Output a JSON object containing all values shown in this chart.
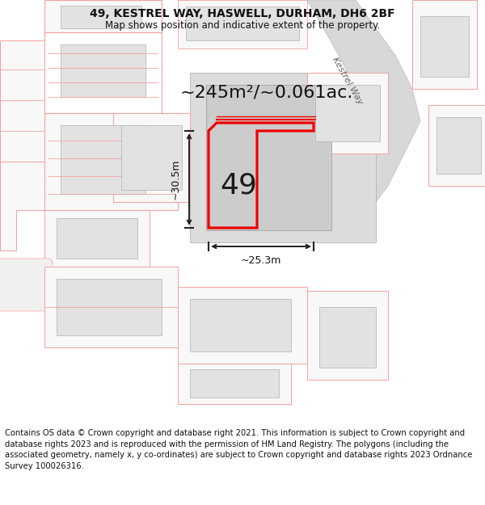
{
  "title": "49, KESTREL WAY, HASWELL, DURHAM, DH6 2BF",
  "subtitle": "Map shows position and indicative extent of the property.",
  "footer": "Contains OS data © Crown copyright and database right 2021. This information is subject to Crown copyright and database rights 2023 and is reproduced with the permission of HM Land Registry. The polygons (including the associated geometry, namely x, y co-ordinates) are subject to Crown copyright and database rights 2023 Ordnance Survey 100026316.",
  "area_text": "~245m²/~0.061ac.",
  "label_49": "49",
  "dim_width": "~25.3m",
  "dim_height": "~30.5m",
  "street_label": "Kestrel Way",
  "bg_color": "#ffffff",
  "map_bg": "#ffffff",
  "lc": "#f4a0a0",
  "red": "#ee0000",
  "bld_gray": "#e2e2e2",
  "road_gray": "#d8d8d8",
  "plot_fill": "#f0f0f0",
  "title_fs": 10,
  "subtitle_fs": 8.5,
  "footer_fs": 7.2,
  "area_fs": 16,
  "label_fs": 26,
  "dim_fs": 9,
  "street_fs": 8
}
